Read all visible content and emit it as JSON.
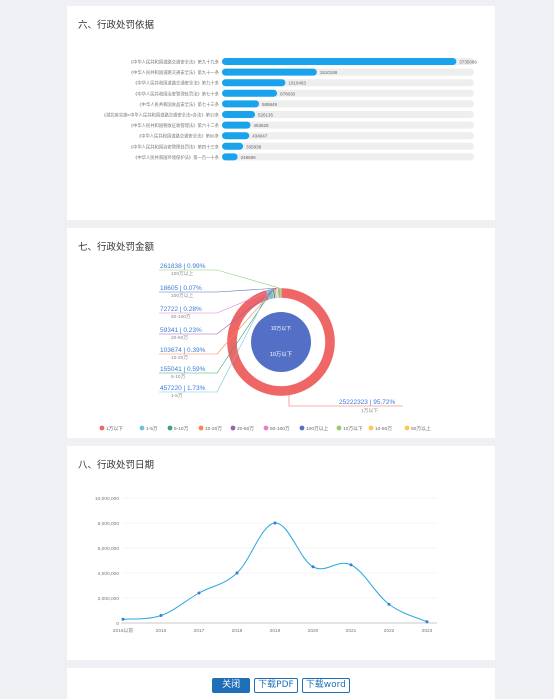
{
  "sections": {
    "legal_basis": {
      "title": "六、行政处罚依据"
    },
    "penalty_amount": {
      "title": "七、行政处罚金额"
    },
    "penalty_date": {
      "title": "八、行政处罚日期"
    }
  },
  "buttons": {
    "close": "关闭",
    "download_pdf": "下载PDF",
    "download_word": "下载word"
  },
  "colors": {
    "bar": "#1aa3ec",
    "track": "#eeeeee",
    "line": "#2aa7e0"
  },
  "chart_data": [
    {
      "type": "bar",
      "orientation": "horizontal",
      "categories": [
        "《中华人民共和国道路交通安全法》第九十九条",
        "《中华人民共和国道路交通安全法》第九十一条",
        "《中华人民共和国道路交通安全法》第九十条",
        "《中华人民共和国治安管理处罚法》第七十条",
        "《中华人民共和国食品安全法》第七十三条",
        "《湖北省实施<中华人民共和国道路交通安全法>办法》第33条",
        "《中华人民共和国税收征收管理法》第六十二条",
        "《中华人民共和国道路交通安全法》第96条",
        "《中华人民共和国治安管理处罚法》第四十三条",
        "《中华人民共和国环境保护法》第一百一十条"
      ],
      "values": [
        3735066,
        1510188,
        1010463,
        878030,
        589849,
        526135,
        453626,
        434047,
        335838,
        248599
      ]
    },
    {
      "type": "pie",
      "donut": true,
      "slices": [
        {
          "label": "1万以下",
          "value": 25222323,
          "pct": "95.72%",
          "color": "#ee6666"
        },
        {
          "label": "1-5万",
          "value": 457220,
          "pct": "1.73%",
          "color": "#73c0de"
        },
        {
          "label": "5-10万",
          "value": 155041,
          "pct": "0.59%",
          "color": "#3ba272"
        },
        {
          "label": "10-20万",
          "value": 103674,
          "pct": "0.39%",
          "color": "#fc8452"
        },
        {
          "label": "20-50万",
          "value": 59341,
          "pct": "0.23%",
          "color": "#9a60b4"
        },
        {
          "label": "50-100万",
          "value": 72722,
          "pct": "0.28%",
          "color": "#ea7ccc"
        },
        {
          "label": "100万以上",
          "value": 18605,
          "pct": "0.07%",
          "color": "#5470c6"
        },
        {
          "label": "100万以上",
          "value": 261838,
          "pct": "0.99%",
          "color": "#91cc75"
        }
      ],
      "legend": [
        "1万以下",
        "1-5万",
        "5-10万",
        "10-20万",
        "20-50万",
        "50-100万",
        "100万以上",
        "10万以下",
        "10-50万",
        "50万以上"
      ],
      "legend_colors": [
        "#ee6666",
        "#73c0de",
        "#3ba272",
        "#fc8452",
        "#9a60b4",
        "#ea7ccc",
        "#5470c6",
        "#91cc75",
        "#fac858",
        "#fac858"
      ],
      "inner": {
        "labels": [
          "10万以下",
          "10万以下"
        ],
        "color": "#5470c6"
      }
    },
    {
      "type": "line",
      "smooth": true,
      "x": [
        "2016以前",
        "2016",
        "2017",
        "2018",
        "2019",
        "2020",
        "2021",
        "2022",
        "2023"
      ],
      "values": [
        300000,
        600000,
        2400000,
        4000000,
        8000000,
        4500000,
        4650000,
        1500000,
        100000
      ],
      "ylim": [
        0,
        10000000
      ],
      "yticks": [
        "0",
        "2,000,000",
        "4,000,000",
        "6,000,000",
        "8,000,000",
        "10,000,000"
      ]
    }
  ]
}
